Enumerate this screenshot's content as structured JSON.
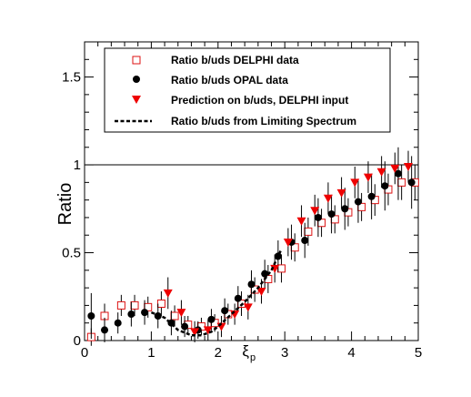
{
  "chart_data": {
    "type": "scatter",
    "xlabel": "ξ",
    "xlabel_sub": "p",
    "ylabel": "Ratio",
    "xlim": [
      0,
      5
    ],
    "ylim": [
      0,
      1.7
    ],
    "x_ticks": [
      "0",
      "1",
      "2",
      "3",
      "4",
      "5"
    ],
    "y_ticks": [
      "0",
      "0.5",
      "1",
      "1.5"
    ],
    "x_tick_values": [
      0,
      1,
      2,
      3,
      4,
      5
    ],
    "y_tick_values": [
      0,
      0.5,
      1,
      1.5
    ],
    "reference_line_y": 1,
    "grid": false,
    "legend_position": "top",
    "series": [
      {
        "name": "Ratio b/uds DELPHI data",
        "marker": "open-square",
        "color": "#dd1111",
        "x": [
          0.1,
          0.3,
          0.55,
          0.75,
          0.95,
          1.15,
          1.35,
          1.55,
          1.75,
          1.95,
          2.15,
          2.35,
          2.55,
          2.75,
          2.95,
          3.15,
          3.35,
          3.55,
          3.75,
          3.95,
          4.15,
          4.35,
          4.55,
          4.75,
          4.95
        ],
        "y": [
          0.02,
          0.14,
          0.2,
          0.2,
          0.19,
          0.21,
          0.14,
          0.09,
          0.08,
          0.1,
          0.15,
          0.21,
          0.29,
          0.35,
          0.41,
          0.53,
          0.62,
          0.67,
          0.69,
          0.73,
          0.76,
          0.8,
          0.86,
          0.9,
          0.9
        ],
        "err": [
          0.05,
          0.07,
          0.06,
          0.06,
          0.06,
          0.07,
          0.06,
          0.05,
          0.05,
          0.05,
          0.06,
          0.07,
          0.07,
          0.08,
          0.08,
          0.08,
          0.08,
          0.08,
          0.08,
          0.08,
          0.08,
          0.09,
          0.09,
          0.1,
          0.1
        ]
      },
      {
        "name": "Ratio b/uds OPAL data",
        "marker": "filled-circle",
        "color": "#000000",
        "x": [
          0.1,
          0.3,
          0.5,
          0.7,
          0.9,
          1.1,
          1.3,
          1.5,
          1.7,
          1.9,
          2.1,
          2.3,
          2.5,
          2.7,
          2.9,
          3.1,
          3.3,
          3.5,
          3.7,
          3.9,
          4.1,
          4.3,
          4.5,
          4.7,
          4.9
        ],
        "y": [
          0.14,
          0.06,
          0.1,
          0.15,
          0.16,
          0.14,
          0.1,
          0.08,
          0.06,
          0.12,
          0.17,
          0.24,
          0.32,
          0.38,
          0.48,
          0.56,
          0.57,
          0.7,
          0.72,
          0.75,
          0.79,
          0.82,
          0.88,
          0.95,
          0.9
        ],
        "err": [
          0.13,
          0.07,
          0.06,
          0.07,
          0.07,
          0.07,
          0.07,
          0.06,
          0.05,
          0.06,
          0.07,
          0.07,
          0.08,
          0.08,
          0.09,
          0.1,
          0.1,
          0.11,
          0.11,
          0.12,
          0.12,
          0.13,
          0.14,
          0.15,
          0.15
        ]
      },
      {
        "name": "Prediction on b/uds, DELPHI input",
        "marker": "filled-triangle-down",
        "color": "#ee0000",
        "x": [
          1.25,
          1.45,
          1.65,
          1.85,
          2.05,
          2.25,
          2.45,
          2.65,
          2.85,
          3.05,
          3.25,
          3.45,
          3.65,
          3.85,
          4.05,
          4.25,
          4.45,
          4.65,
          4.85
        ],
        "y": [
          0.27,
          0.16,
          0.05,
          0.06,
          0.08,
          0.15,
          0.19,
          0.28,
          0.41,
          0.56,
          0.68,
          0.74,
          0.81,
          0.84,
          0.9,
          0.93,
          0.96,
          0.98,
          0.99
        ],
        "err": [
          0.09,
          0.07,
          0.06,
          0.06,
          0.06,
          0.06,
          0.07,
          0.07,
          0.08,
          0.08,
          0.09,
          0.09,
          0.09,
          0.09,
          0.09,
          0.09,
          0.09,
          0.09,
          0.09
        ]
      },
      {
        "name": "Ratio b/uds from Limiting Spectrum",
        "marker": "dashed-line",
        "color": "#000000",
        "x": [
          1.0,
          1.2,
          1.4,
          1.6,
          1.75,
          1.9,
          2.0,
          2.2,
          2.4,
          2.6,
          2.8,
          2.95
        ],
        "y": [
          0.16,
          0.13,
          0.06,
          0.03,
          0.03,
          0.05,
          0.08,
          0.15,
          0.22,
          0.3,
          0.4,
          0.52
        ]
      }
    ]
  }
}
